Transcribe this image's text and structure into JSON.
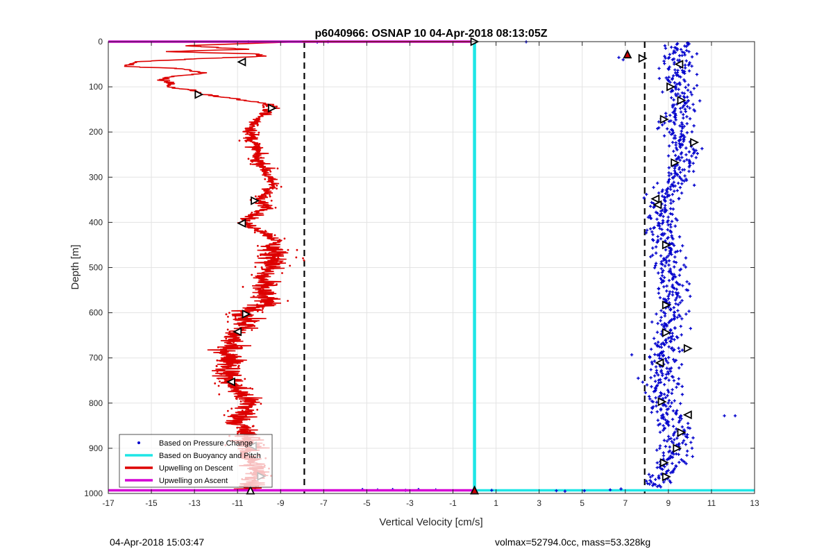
{
  "chart_data": {
    "type": "scatter",
    "title": "p6040966: OSNAP 10 04-Apr-2018 08:13:05Z",
    "xlabel": "Vertical Velocity [cm/s]",
    "ylabel": "Depth [m]",
    "xlim": [
      -17,
      13
    ],
    "ylim": [
      0,
      1000
    ],
    "y_reversed": true,
    "grid": true,
    "x_ticks": [
      "-17",
      "-15",
      "-13",
      "-11",
      "-9",
      "-7",
      "-5",
      "-3",
      "-1",
      "1",
      "3",
      "5",
      "7",
      "9",
      "11",
      "13"
    ],
    "y_ticks": [
      "0",
      "100",
      "200",
      "300",
      "400",
      "500",
      "600",
      "700",
      "800",
      "900",
      "1000"
    ],
    "legend_position": "bottom-left",
    "colors": {
      "pressure": "#0000cc",
      "buoyancy": "#1ee6e6",
      "descent": "#dd0000",
      "ascent": "#d400d4",
      "marker_red": "#cc0000",
      "dashed": "#000000"
    },
    "series": [
      {
        "name": "Based on Pressure Change"
      },
      {
        "name": "Based on Buoyancy and Pitch"
      },
      {
        "name": "Upwelling on Descent"
      },
      {
        "name": "Upwelling on Ascent"
      }
    ],
    "reference_lines_x": [
      -7.9,
      7.9
    ],
    "buoyancy_profile": {
      "x": 0,
      "depth_range": [
        0,
        993
      ]
    },
    "descent_profile": [
      [
        -8,
        0
      ],
      [
        -13.5,
        9
      ],
      [
        -10.5,
        17
      ],
      [
        -14.5,
        22
      ],
      [
        -10.2,
        27
      ],
      [
        -9.8,
        33
      ],
      [
        -12.5,
        37
      ],
      [
        -15.8,
        45
      ],
      [
        -16.2,
        55
      ],
      [
        -13.5,
        60
      ],
      [
        -12.5,
        70
      ],
      [
        -14.2,
        77
      ],
      [
        -14.5,
        85
      ],
      [
        -14,
        93
      ],
      [
        -14.3,
        100
      ],
      [
        -13,
        108
      ],
      [
        -12.7,
        116
      ],
      [
        -11.5,
        124
      ],
      [
        -10.5,
        131
      ],
      [
        -9.6,
        138
      ],
      [
        -9.4,
        147
      ],
      [
        -9.6,
        157
      ],
      [
        -10,
        166
      ],
      [
        -10.2,
        182
      ],
      [
        -10.4,
        200
      ],
      [
        -10.3,
        220
      ],
      [
        -10.1,
        240
      ],
      [
        -10.1,
        260
      ],
      [
        -9.7,
        280
      ],
      [
        -9.6,
        300
      ],
      [
        -9.3,
        320
      ],
      [
        -10.1,
        350
      ],
      [
        -9.5,
        368
      ],
      [
        -10.2,
        385
      ],
      [
        -10.8,
        400
      ],
      [
        -9.8,
        420
      ],
      [
        -9.2,
        440
      ],
      [
        -9.4,
        460
      ],
      [
        -9.2,
        480
      ],
      [
        -9.5,
        500
      ],
      [
        -9.9,
        520
      ],
      [
        -9.8,
        540
      ],
      [
        -9.9,
        560
      ],
      [
        -9.6,
        575
      ],
      [
        -10.2,
        590
      ],
      [
        -10.7,
        605
      ],
      [
        -10.6,
        625
      ],
      [
        -11.1,
        645
      ],
      [
        -11.3,
        665
      ],
      [
        -11.5,
        690
      ],
      [
        -11.2,
        710
      ],
      [
        -11.5,
        730
      ],
      [
        -11.3,
        755
      ],
      [
        -10.9,
        775
      ],
      [
        -10.4,
        800
      ],
      [
        -10.7,
        820
      ],
      [
        -10.9,
        845
      ],
      [
        -10.6,
        870
      ],
      [
        -10.4,
        890
      ],
      [
        -10.6,
        915
      ],
      [
        -10.2,
        935
      ],
      [
        -10.1,
        955
      ],
      [
        -10.3,
        975
      ],
      [
        -10.4,
        990
      ],
      [
        -10.4,
        993
      ]
    ],
    "descent_noise_by_depth": [
      [
        0,
        150,
        0.35
      ],
      [
        150,
        450,
        0.45
      ],
      [
        450,
        1000,
        0.85
      ]
    ],
    "ascent_profile": {
      "depth": 993,
      "x_range": [
        -17,
        13
      ]
    },
    "surface_line": {
      "depth": 0,
      "x_range": [
        -17,
        0
      ]
    },
    "pressure_profile": [
      [
        9.5,
        0
      ],
      [
        9.4,
        50
      ],
      [
        9.5,
        100
      ],
      [
        9.6,
        150
      ],
      [
        9.3,
        200
      ],
      [
        9.9,
        250
      ],
      [
        9.4,
        300
      ],
      [
        8.8,
        350
      ],
      [
        8.7,
        400
      ],
      [
        8.9,
        450
      ],
      [
        9,
        500
      ],
      [
        9.1,
        550
      ],
      [
        9,
        600
      ],
      [
        9.1,
        650
      ],
      [
        8.8,
        700
      ],
      [
        8.7,
        750
      ],
      [
        8.7,
        800
      ],
      [
        9.3,
        850
      ],
      [
        9.4,
        900
      ],
      [
        9,
        950
      ],
      [
        8.4,
        985
      ]
    ],
    "pressure_point_count": 900,
    "pressure_spread": 0.55,
    "pressure_outliers": [
      [
        -10.5,
        0.5
      ],
      [
        -7.3,
        1
      ],
      [
        -6.8,
        0.3
      ],
      [
        2.4,
        0.5
      ],
      [
        6.7,
        35
      ],
      [
        6.9,
        40
      ],
      [
        11.6,
        828
      ],
      [
        12.1,
        828
      ],
      [
        7.3,
        693
      ],
      [
        7.6,
        745
      ],
      [
        -5.2,
        991
      ],
      [
        -4.5,
        992
      ],
      [
        -3.8,
        991
      ],
      [
        -3.2,
        993
      ],
      [
        -2.6,
        991
      ],
      [
        -1.8,
        992
      ],
      [
        0.8,
        993
      ],
      [
        3.8,
        994
      ],
      [
        4.2,
        995
      ],
      [
        5.1,
        994
      ],
      [
        6.3,
        992
      ],
      [
        6.8,
        990
      ]
    ],
    "markers_black": [
      {
        "x": 0,
        "y": 0,
        "dir": "right"
      },
      {
        "x": -10.8,
        "y": 45,
        "dir": "left"
      },
      {
        "x": -12.8,
        "y": 117,
        "dir": "right"
      },
      {
        "x": -9.4,
        "y": 147,
        "dir": "right"
      },
      {
        "x": -10.2,
        "y": 352,
        "dir": "right"
      },
      {
        "x": -10.8,
        "y": 402,
        "dir": "left"
      },
      {
        "x": -10.6,
        "y": 603,
        "dir": "right"
      },
      {
        "x": -11.0,
        "y": 642,
        "dir": "left"
      },
      {
        "x": -11.3,
        "y": 753,
        "dir": "left"
      },
      {
        "x": -10.3,
        "y": 895,
        "dir": "left"
      },
      {
        "x": -9.9,
        "y": 962,
        "dir": "right"
      },
      {
        "x": -10.4,
        "y": 993,
        "dir": "up"
      },
      {
        "x": 7.8,
        "y": 37,
        "dir": "right"
      },
      {
        "x": 9.5,
        "y": 50,
        "dir": "left"
      },
      {
        "x": 9.1,
        "y": 100,
        "dir": "right"
      },
      {
        "x": 9.6,
        "y": 130,
        "dir": "right"
      },
      {
        "x": 8.8,
        "y": 172,
        "dir": "right"
      },
      {
        "x": 10.2,
        "y": 223,
        "dir": "right"
      },
      {
        "x": 9.3,
        "y": 268,
        "dir": "right"
      },
      {
        "x": 8.4,
        "y": 348,
        "dir": "left"
      },
      {
        "x": 8.5,
        "y": 361,
        "dir": "left"
      },
      {
        "x": 8.9,
        "y": 450,
        "dir": "right"
      },
      {
        "x": 8.9,
        "y": 583,
        "dir": "right"
      },
      {
        "x": 8.9,
        "y": 644,
        "dir": "right"
      },
      {
        "x": 9.9,
        "y": 679,
        "dir": "right"
      },
      {
        "x": 8.6,
        "y": 711,
        "dir": "left"
      },
      {
        "x": 8.7,
        "y": 797,
        "dir": "right"
      },
      {
        "x": 9.9,
        "y": 826,
        "dir": "left"
      },
      {
        "x": 9.6,
        "y": 865,
        "dir": "right"
      },
      {
        "x": 9.4,
        "y": 900,
        "dir": "right"
      },
      {
        "x": 8.8,
        "y": 932,
        "dir": "right"
      },
      {
        "x": 8.9,
        "y": 963,
        "dir": "right"
      }
    ],
    "markers_red": [
      {
        "x": 7.1,
        "y": 28,
        "dir": "up"
      },
      {
        "x": 0,
        "y": 993,
        "dir": "up"
      }
    ]
  },
  "footer": {
    "timestamp": "04-Apr-2018 15:03:47",
    "stats": "volmax=52794.0cc, mass=53.328kg"
  }
}
